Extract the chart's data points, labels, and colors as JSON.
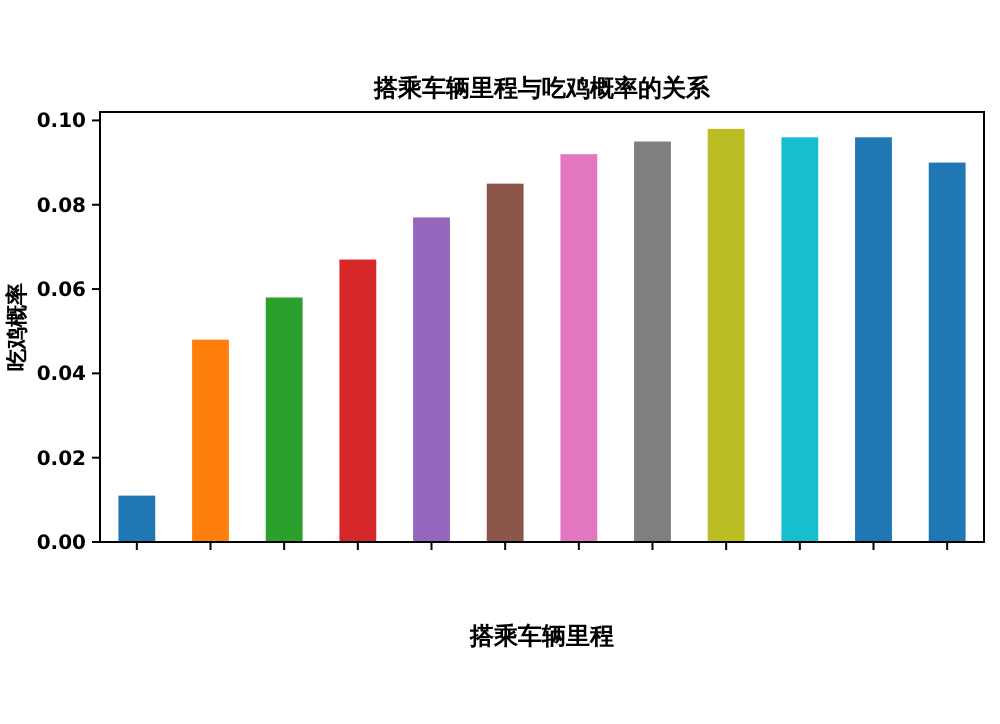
{
  "chart_data": {
    "type": "bar",
    "title": "搭乘车辆里程与吃鸡概率的关系",
    "xlabel": "搭乘车辆里程",
    "ylabel": "吃鸡概率",
    "categories": [
      null,
      null,
      null,
      null,
      null,
      null,
      null,
      null,
      null,
      null,
      null,
      null
    ],
    "values": [
      0.011,
      0.048,
      0.058,
      0.067,
      0.077,
      0.085,
      0.092,
      0.095,
      0.098,
      0.096,
      0.096,
      0.09
    ],
    "colors": [
      "#1f77b4",
      "#ff7f0e",
      "#2ca02c",
      "#d62728",
      "#9467bd",
      "#8c564b",
      "#e377c2",
      "#7f7f7f",
      "#bcbd22",
      "#17becf",
      "#1f77b4",
      "#1f77b4"
    ],
    "ylim": [
      0,
      0.102
    ],
    "yticks": [
      {
        "value": 0,
        "label": "0.00"
      },
      {
        "value": 0.02,
        "label": "0.02"
      },
      {
        "value": 0.04,
        "label": "0.04"
      },
      {
        "value": 0.06,
        "label": "0.06"
      },
      {
        "value": 0.08,
        "label": "0.08"
      },
      {
        "value": 0.1,
        "label": "0.10"
      }
    ],
    "grid": false
  }
}
